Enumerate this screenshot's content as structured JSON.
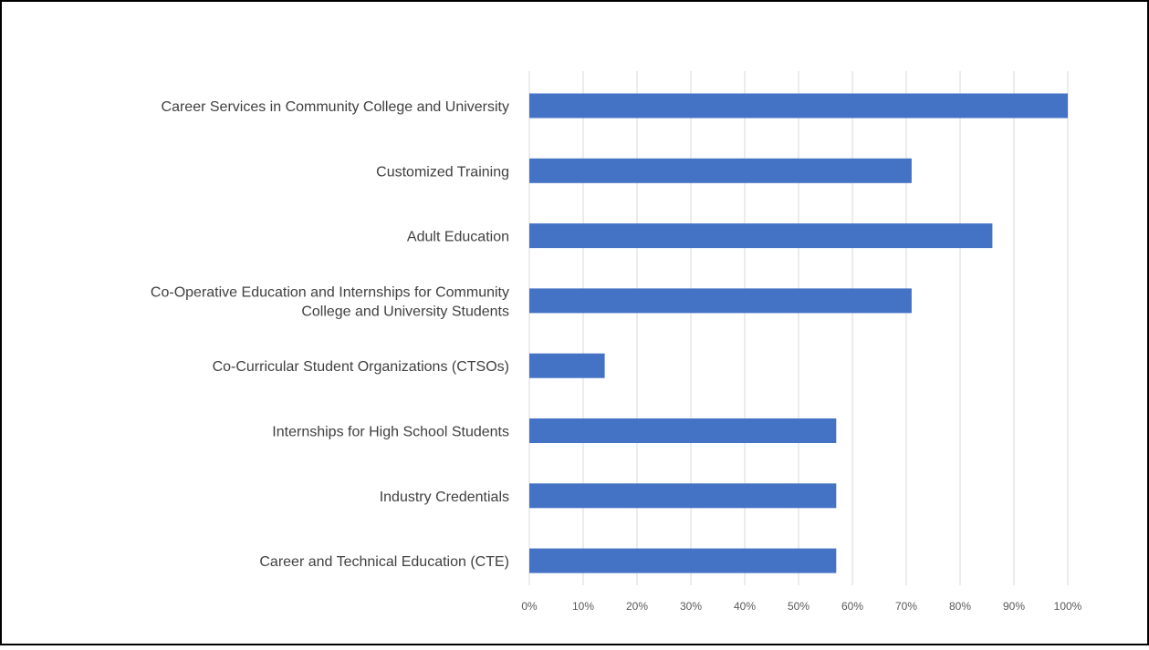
{
  "chart_data": {
    "type": "bar",
    "orientation": "horizontal",
    "categories": [
      "Career Services in Community College and University",
      "Customized Training",
      "Adult Education",
      "Co-Operative Education and Internships for Community College and University Students",
      "Co-Curricular Student Organizations (CTSOs)",
      "Internships for High School Students",
      "Industry Credentials",
      "Career and Technical Education (CTE)"
    ],
    "category_lines": [
      [
        "Career Services in Community College and University"
      ],
      [
        "Customized Training"
      ],
      [
        "Adult Education"
      ],
      [
        "Co-Operative Education and Internships for Community",
        "College and University Students"
      ],
      [
        "Co-Curricular Student Organizations (CTSOs)"
      ],
      [
        "Internships for High School Students"
      ],
      [
        "Industry Credentials"
      ],
      [
        "Career and Technical Education (CTE)"
      ]
    ],
    "values": [
      100,
      71,
      86,
      71,
      14,
      57,
      57,
      57
    ],
    "xlim": [
      0,
      100
    ],
    "x_ticks": [
      0,
      10,
      20,
      30,
      40,
      50,
      60,
      70,
      80,
      90,
      100
    ],
    "x_tick_labels": [
      "0%",
      "10%",
      "20%",
      "30%",
      "40%",
      "50%",
      "60%",
      "70%",
      "80%",
      "90%",
      "100%"
    ],
    "grid": "vertical",
    "legend": "none",
    "bar_color": "#4472C4",
    "grid_color": "#D9D9D9",
    "border_color": "#000000"
  }
}
